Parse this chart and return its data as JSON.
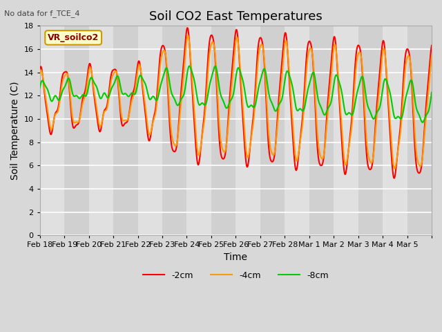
{
  "title": "Soil CO2 East Temperatures",
  "subtitle": "No data for f_TCE_4",
  "xlabel": "Time",
  "ylabel": "Soil Temperature (C)",
  "ylim": [
    0,
    18
  ],
  "yticks": [
    0,
    2,
    4,
    6,
    8,
    10,
    12,
    14,
    16,
    18
  ],
  "legend_label": "VR_soilco2",
  "series_labels": [
    "-2cm",
    "-4cm",
    "-8cm"
  ],
  "series_colors": [
    "#ff0000",
    "#ff9900",
    "#00cc00"
  ],
  "x_tick_labels": [
    "Feb 18",
    "Feb 19",
    "Feb 20",
    "Feb 21",
    "Feb 22",
    "Feb 23",
    "Feb 24",
    "Feb 25",
    "Feb 26",
    "Feb 27",
    "Feb 28",
    "Mar 1",
    "Mar 2",
    "Mar 3",
    "Mar 4",
    "Mar 5",
    ""
  ],
  "bg_color": "#d8d8d8",
  "plot_bg_color": "#f0f0f0",
  "grid_color": "#ffffff",
  "title_fontsize": 13,
  "axis_fontsize": 10,
  "tick_fontsize": 8,
  "line_width": 1.5,
  "n_days": 16
}
